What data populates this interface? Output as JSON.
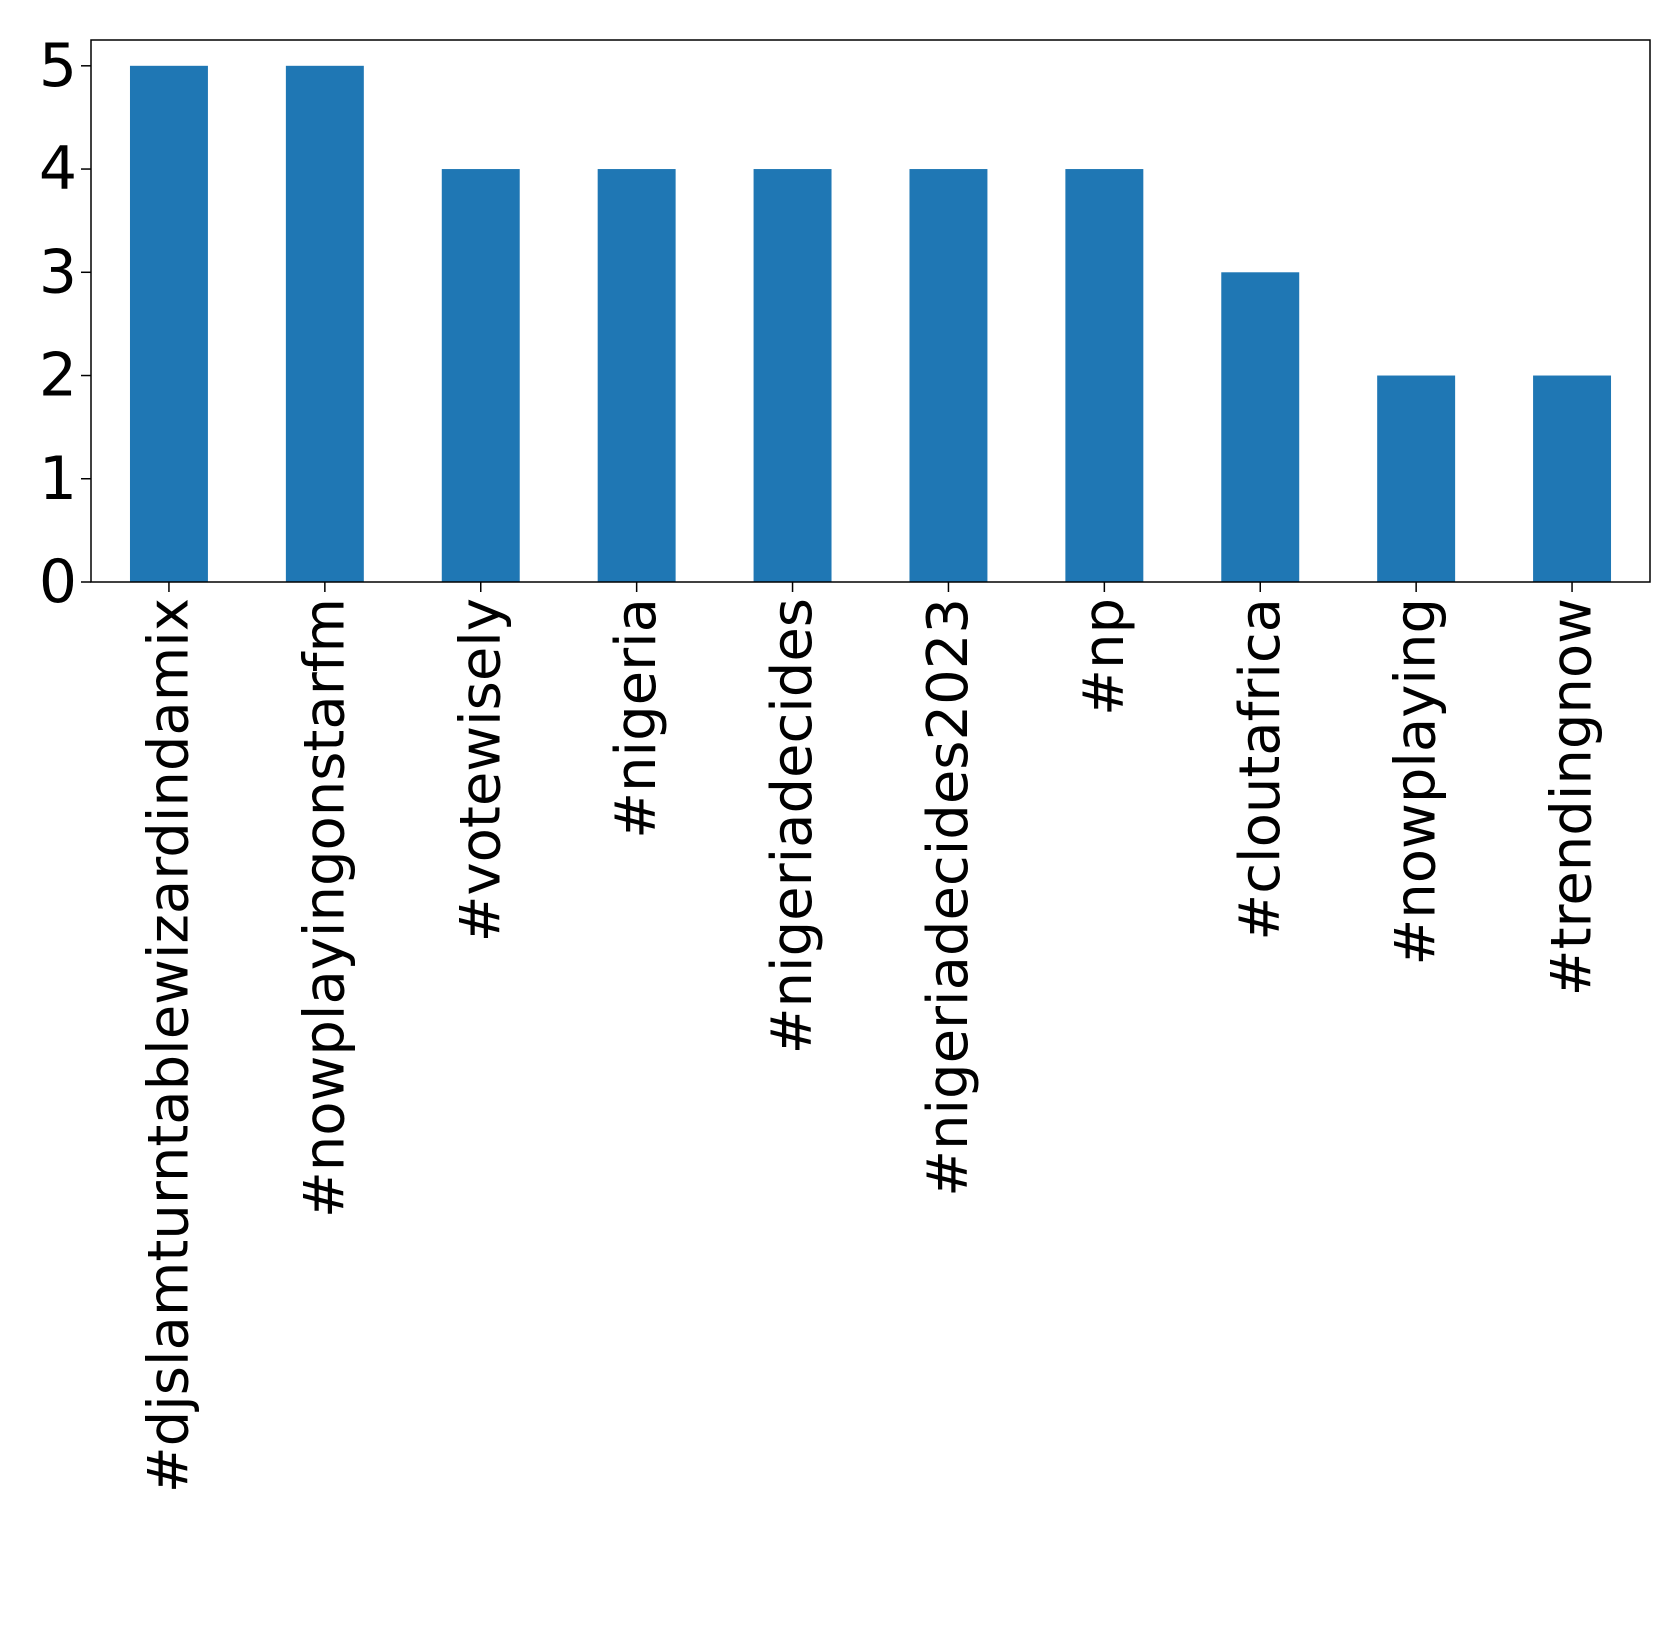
{
  "chart_data": {
    "type": "bar",
    "title": "",
    "xlabel": "",
    "ylabel": "",
    "categories": [
      "#djslamturntablewizardindamix",
      "#nowplayingonstarfm",
      "#votewisely",
      "#nigeria",
      "#nigeriadecides",
      "#nigeriadecides2023",
      "#np",
      "#cloutafrica",
      "#nowplaying",
      "#trendingnow"
    ],
    "values": [
      5,
      5,
      4,
      4,
      4,
      4,
      4,
      3,
      2,
      2
    ],
    "ylim": [
      0,
      5.25
    ],
    "yticks": [
      0,
      1,
      2,
      3,
      4,
      5
    ],
    "bar_color": "#1f77b4",
    "grid": false,
    "legend": false
  }
}
